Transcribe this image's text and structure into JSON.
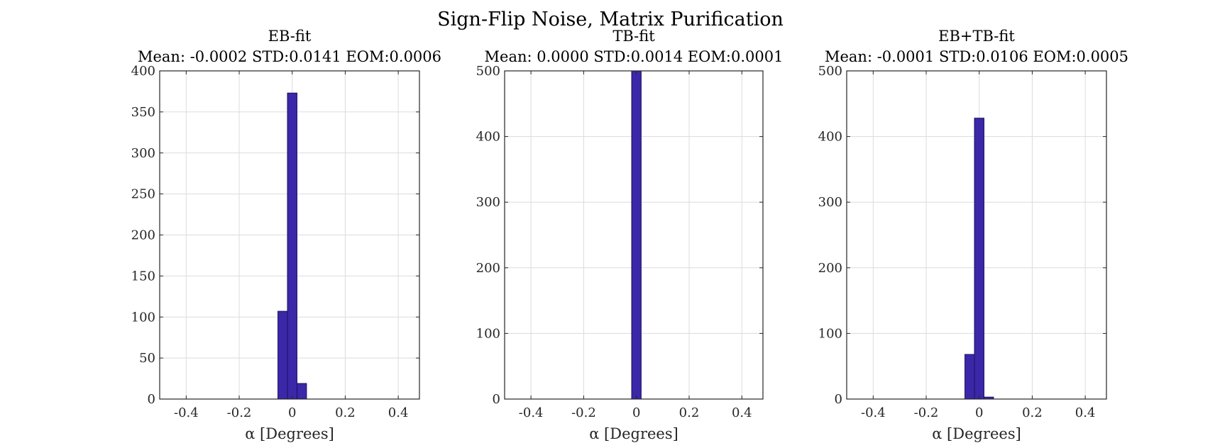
{
  "figure": {
    "suptitle": "Sign-Flip Noise, Matrix Purification",
    "bar_color": "#3a28a8",
    "bar_edge": "#1a1060",
    "grid_color": "#dcdcdc"
  },
  "chart_data": [
    {
      "type": "bar",
      "title": "EB-fit",
      "subtitle": "Mean: -0.0002 STD:0.0141 EOM:0.0006",
      "xlabel": "α [Degrees]",
      "ylabel": "",
      "xlim": [
        -0.5,
        0.48
      ],
      "ylim": [
        0,
        400
      ],
      "xticks": [
        -0.4,
        -0.2,
        0,
        0.2,
        0.4
      ],
      "xtick_labels": [
        "-0.4",
        "-0.2",
        "0",
        "0.2",
        "0.4"
      ],
      "yticks": [
        0,
        50,
        100,
        150,
        200,
        250,
        300,
        350,
        400
      ],
      "ytick_labels": [
        "0",
        "50",
        "100",
        "150",
        "200",
        "250",
        "300",
        "350",
        "400"
      ],
      "grid": true,
      "bin_width": 0.036,
      "bins": [
        {
          "left": -0.054,
          "count": 107
        },
        {
          "left": -0.018,
          "count": 373
        },
        {
          "left": 0.018,
          "count": 19
        }
      ]
    },
    {
      "type": "bar",
      "title": "TB-fit",
      "subtitle": "Mean: 0.0000 STD:0.0014 EOM:0.0001",
      "xlabel": "α [Degrees]",
      "ylabel": "",
      "xlim": [
        -0.5,
        0.48
      ],
      "ylim": [
        0,
        500
      ],
      "xticks": [
        -0.4,
        -0.2,
        0,
        0.2,
        0.4
      ],
      "xtick_labels": [
        "-0.4",
        "-0.2",
        "0",
        "0.2",
        "0.4"
      ],
      "yticks": [
        0,
        100,
        200,
        300,
        400,
        500
      ],
      "ytick_labels": [
        "0",
        "100",
        "200",
        "300",
        "400",
        "500"
      ],
      "grid": true,
      "bin_width": 0.036,
      "bins": [
        {
          "left": -0.018,
          "count": 500
        }
      ]
    },
    {
      "type": "bar",
      "title": "EB+TB-fit",
      "subtitle": "Mean: -0.0001 STD:0.0106 EOM:0.0005",
      "xlabel": "α [Degrees]",
      "ylabel": "",
      "xlim": [
        -0.5,
        0.48
      ],
      "ylim": [
        0,
        500
      ],
      "xticks": [
        -0.4,
        -0.2,
        0,
        0.2,
        0.4
      ],
      "xtick_labels": [
        "-0.4",
        "-0.2",
        "0",
        "0.2",
        "0.4"
      ],
      "yticks": [
        0,
        100,
        200,
        300,
        400,
        500
      ],
      "ytick_labels": [
        "0",
        "100",
        "200",
        "300",
        "400",
        "500"
      ],
      "grid": true,
      "bin_width": 0.036,
      "bins": [
        {
          "left": -0.054,
          "count": 68
        },
        {
          "left": -0.018,
          "count": 428
        },
        {
          "left": 0.018,
          "count": 3
        }
      ]
    }
  ]
}
